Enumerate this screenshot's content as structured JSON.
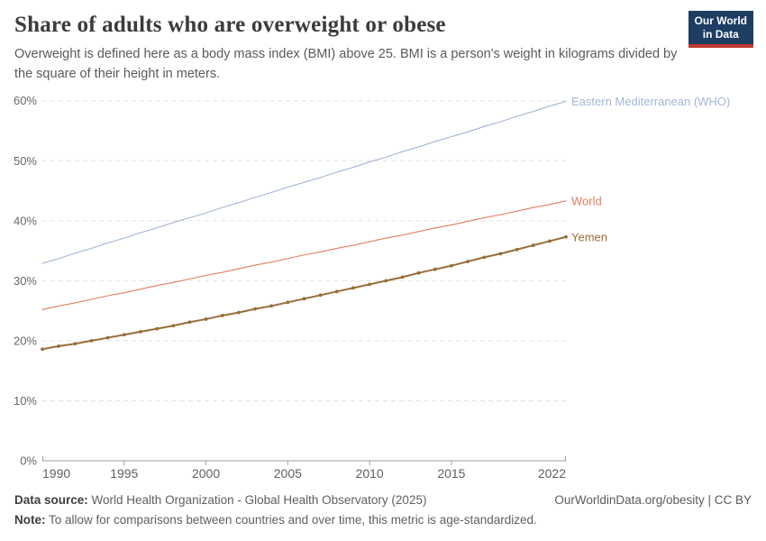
{
  "header": {
    "title": "Share of adults who are overweight or obese",
    "subtitle": "Overweight is defined here as a body mass index (BMI) above 25. BMI is a person's weight in kilograms divided by the square of their height in meters.",
    "logo": {
      "line1": "Our World",
      "line2": "in Data",
      "bg_color": "#1d3d63",
      "stripe_color": "#c0392f"
    }
  },
  "chart_data": {
    "type": "line",
    "title": "Share of adults who are overweight or obese",
    "xlabel": "",
    "ylabel": "",
    "x": [
      1990,
      1991,
      1992,
      1993,
      1994,
      1995,
      1996,
      1997,
      1998,
      1999,
      2000,
      2001,
      2002,
      2003,
      2004,
      2005,
      2006,
      2007,
      2008,
      2009,
      2010,
      2011,
      2012,
      2013,
      2014,
      2015,
      2016,
      2017,
      2018,
      2019,
      2020,
      2021,
      2022
    ],
    "series": [
      {
        "name": "Eastern Mediterranean (WHO)",
        "color": "#a2b6d4",
        "width": 1.1,
        "markers": false,
        "values": [
          32.9,
          33.7,
          34.6,
          35.4,
          36.3,
          37.1,
          38.0,
          38.8,
          39.7,
          40.5,
          41.3,
          42.2,
          43.0,
          43.9,
          44.7,
          45.6,
          46.4,
          47.2,
          48.1,
          48.9,
          49.8,
          50.6,
          51.5,
          52.3,
          53.2,
          54.0,
          54.8,
          55.7,
          56.5,
          57.4,
          58.2,
          59.1,
          59.9
        ]
      },
      {
        "name": "World",
        "color": "#e27d62",
        "width": 1.1,
        "markers": false,
        "values": [
          25.2,
          25.8,
          26.3,
          26.9,
          27.5,
          28.0,
          28.6,
          29.2,
          29.7,
          30.3,
          30.9,
          31.4,
          32.0,
          32.6,
          33.1,
          33.7,
          34.3,
          34.8,
          35.4,
          35.9,
          36.5,
          37.1,
          37.6,
          38.2,
          38.8,
          39.3,
          39.9,
          40.5,
          41.0,
          41.6,
          42.2,
          42.7,
          43.3
        ]
      },
      {
        "name": "Yemen",
        "color": "#996d39",
        "width": 2,
        "markers": true,
        "values": [
          18.6,
          19.1,
          19.5,
          20.0,
          20.5,
          21.0,
          21.5,
          22.0,
          22.5,
          23.1,
          23.6,
          24.2,
          24.7,
          25.3,
          25.8,
          26.4,
          27.0,
          27.6,
          28.2,
          28.8,
          29.4,
          30.0,
          30.6,
          31.3,
          31.9,
          32.5,
          33.2,
          33.9,
          34.5,
          35.2,
          35.9,
          36.6,
          37.3
        ]
      }
    ],
    "ylim": [
      0,
      60
    ],
    "yticks": [
      0,
      10,
      20,
      30,
      40,
      50,
      60
    ],
    "ytick_suffix": "%",
    "xticks": [
      1990,
      1995,
      2000,
      2005,
      2010,
      2015,
      2022
    ],
    "grid": "horizontal-dashed",
    "legend_position": "right-end-labels",
    "grid_color": "#e2e2e2",
    "axis_color": "#9e9e9e"
  },
  "footer": {
    "source_label": "Data source:",
    "source_text": " World Health Organization - Global Health Observatory (2025)",
    "link": "OurWorldinData.org/obesity | CC BY",
    "note_label": "Note:",
    "note_text": " To allow for comparisons between countries and over time, this metric is age-standardized."
  }
}
